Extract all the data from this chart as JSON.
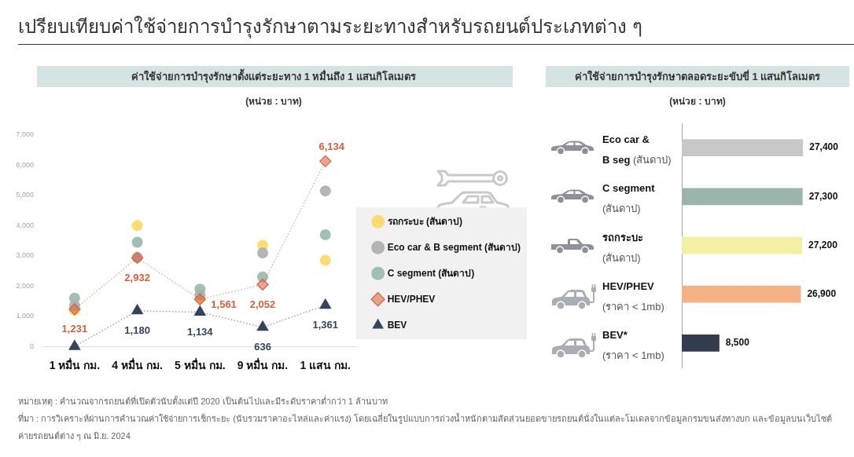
{
  "chart_data": [
    {
      "type": "scatter",
      "title": "เปรียบเทียบค่าใช้จ่ายการบำรุงรักษาตามระยะทางสำหรับรถยนต์ประเภทต่าง ๆ",
      "subtitle": "ค่าใช้จ่ายการบำรุงรักษาตั้งแต่ระยะทาง 1 หมื่นถึง 1 แสนกิโลเมตร",
      "ylabel": "(หน่วย : บาท)",
      "categories": [
        "1 หมื่น กม.",
        "4 หมื่น กม.",
        "5 หมื่น กม.",
        "9 หมื่น กม.",
        "1 แสน กม."
      ],
      "series": [
        {
          "name": "รถกระบะ (สันดาป)",
          "color": "#ffd966",
          "values": [
            1200,
            4000,
            1600,
            3350,
            2850
          ]
        },
        {
          "name": "Eco car & B segment (สันดาป)",
          "color": "#afafaf",
          "values": [
            1350,
            2950,
            1700,
            3100,
            5150
          ]
        },
        {
          "name": "C segment (สันดาป)",
          "color": "#9bb8ad",
          "values": [
            1600,
            3450,
            1900,
            2300,
            3700
          ]
        },
        {
          "name": "HEV/PHEV",
          "type": "line",
          "color": "#d8603a",
          "marker": "diamond",
          "line_style": "dotted",
          "values": [
            1231,
            2932,
            1561,
            2052,
            6134
          ],
          "value_labels": [
            "1,231",
            "2,932",
            "1,561",
            "2,052",
            "6,134"
          ]
        },
        {
          "name": "BEV",
          "type": "line",
          "color": "#34445f",
          "marker": "triangle",
          "line_style": "dotted",
          "values": [
            0,
            1180,
            1134,
            636,
            1361
          ],
          "value_labels": [
            null,
            "1,180",
            "1,134",
            "636",
            "1,361"
          ]
        }
      ],
      "ylim": [
        0,
        7000
      ],
      "yticks": [
        {
          "value": 0,
          "label": "0"
        },
        {
          "value": 1000,
          "label": "1,000"
        },
        {
          "value": 2000,
          "label": "2,000"
        },
        {
          "value": 3000,
          "label": "3,000"
        },
        {
          "value": 4000,
          "label": "4,000"
        },
        {
          "value": 5000,
          "label": "5,000"
        },
        {
          "value": 6000,
          "label": "6,000"
        },
        {
          "value": 7000,
          "label": "7,000"
        }
      ],
      "marker": "circle",
      "legend": "bottom right",
      "annotations": [
        "หมายเหตุ : คำนวณจากรถยนต์ที่เปิดตัวนับตั้งแต่ปี 2020 เป็นต้นไปและมีระดับราคาต่ำกว่า 1 ล้านบาท",
        "ที่มา : การวิเคราะห์ผ่านการคำนวณค่าใช้จ่ายการเช็กระยะ (นับรวมราคาอะไหล่และค่าแรง) โดยเฉลี่ยในรูปแบบการถ่วงน้ำหนักตามสัดส่วนยอดขายรถยนต์นั่งในแต่ละโมเดลจากข้อมูลกรมขนส่งทางบก และข้อมูลบนเว็บไซต์ค่ายรถยนต์ต่าง ๆ ณ มิ.ย. 2024"
      ]
    },
    {
      "type": "bar",
      "orientation": "horizontal",
      "title": "ค่าใช้จ่ายการบำรุงรักษาตลอดระยะขับขี่ 1 แสนกิโลเมตร",
      "xlabel": "(หน่วย : บาท)",
      "categories": [
        "Eco car &\nB seg (สันดาป)",
        "C segment\n(สันดาป)",
        "รถกระบะ\n(สันดาป)",
        "HEV/PHEV\n(ราคา < 1mb)",
        "BEV*\n(ราคา < 1mb)"
      ],
      "values": [
        27400,
        27300,
        27200,
        26900,
        8500
      ],
      "colors": [
        "#c8c8c8",
        "#9bb5ab",
        "#f3f0a3",
        "#f4b183",
        "#333d4e"
      ],
      "value_labels": [
        "27,400",
        "27,300",
        "27,200",
        "26,900",
        "8,500"
      ],
      "tick_labels": "y"
    }
  ]
}
